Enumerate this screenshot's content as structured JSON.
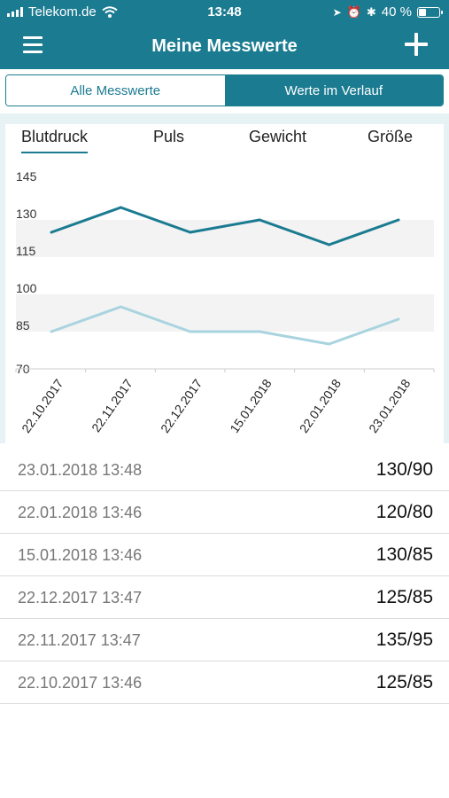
{
  "status": {
    "carrier": "Telekom.de",
    "time": "13:48",
    "battery": "40 %",
    "battery_level": 0.4,
    "bluetooth": "✱",
    "alarm": "⏰",
    "location": "➤"
  },
  "nav": {
    "title": "Meine Messwerte",
    "menu_icon": "hamburger-menu-icon",
    "add_icon": "plus-icon"
  },
  "segments": {
    "all": "Alle Messwerte",
    "history": "Werte im Verlauf"
  },
  "tabs": {
    "blood_pressure": "Blutdruck",
    "pulse": "Puls",
    "weight": "Gewicht",
    "height": "Größe"
  },
  "colors": {
    "accent": "#1b7b91",
    "systolic": "#1b7b91",
    "diastolic": "#a9d4df",
    "band": "#f3f3f3"
  },
  "chart_data": {
    "type": "line",
    "categories": [
      "22.10.2017",
      "22.11.2017",
      "22.12.2017",
      "15.01.2018",
      "22.01.2018",
      "23.01.2018"
    ],
    "series": [
      {
        "values": [
          125,
          135,
          125,
          130,
          120,
          130
        ]
      },
      {
        "values": [
          85,
          95,
          85,
          85,
          80,
          90
        ]
      }
    ],
    "y_ticks": [
      145,
      130,
      115,
      100,
      85,
      70
    ],
    "ylim": [
      70,
      145
    ],
    "bands": [
      [
        115,
        130
      ],
      [
        85,
        100
      ]
    ]
  },
  "measurements": [
    {
      "date": "23.01.2018 13:48",
      "value": "130/90"
    },
    {
      "date": "22.01.2018 13:46",
      "value": "120/80"
    },
    {
      "date": "15.01.2018 13:46",
      "value": "130/85"
    },
    {
      "date": "22.12.2017 13:47",
      "value": "125/85"
    },
    {
      "date": "22.11.2017 13:47",
      "value": "135/95"
    },
    {
      "date": "22.10.2017 13:46",
      "value": "125/85"
    }
  ]
}
